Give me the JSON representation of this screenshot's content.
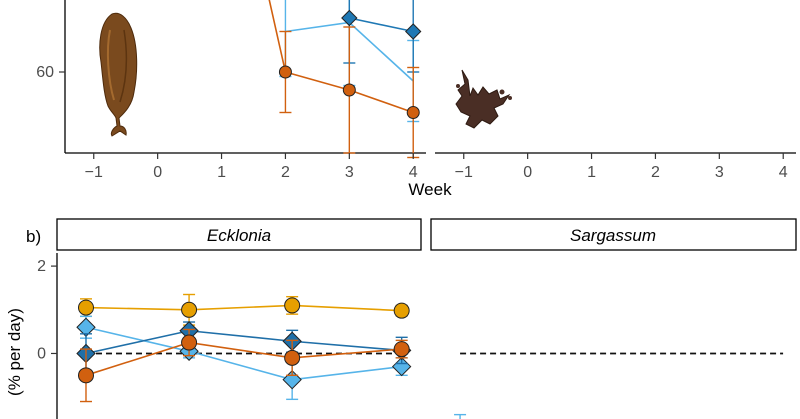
{
  "chart_data": [
    {
      "panel": "a",
      "type": "line",
      "xlabel": "Week",
      "ylabel": "",
      "x_ticks": [
        -1,
        0,
        1,
        2,
        3,
        4
      ],
      "y_ticks": [
        60
      ],
      "xlim": [
        -1.45,
        4.2
      ],
      "ylim": [
        42,
        76
      ],
      "facets": [
        {
          "name": "",
          "series": [
            {
              "color": "#d1600f",
              "marker": "circle",
              "points": [
                {
                  "x": 1.7,
                  "y": 79,
                  "err": 0
                },
                {
                  "x": 2,
                  "y": 60,
                  "err": 9
                },
                {
                  "x": 3,
                  "y": 56,
                  "err": 14
                },
                {
                  "x": 4,
                  "y": 51,
                  "err": 10
                }
              ]
            },
            {
              "color": "#1f78b4",
              "marker": "diamond",
              "points": [
                {
                  "x": 3,
                  "y": 72,
                  "err": 10
                },
                {
                  "x": 4,
                  "y": 69,
                  "err": 9
                }
              ]
            },
            {
              "color": "#56b4e9",
              "marker": "none",
              "points": [
                {
                  "x": 2,
                  "y": 69,
                  "err": 10
                },
                {
                  "x": 3,
                  "y": 71,
                  "err": 14
                },
                {
                  "x": 4,
                  "y": 58,
                  "err": 9
                }
              ]
            }
          ]
        },
        {
          "name": "",
          "series": []
        }
      ]
    },
    {
      "panel": "b",
      "panel_label": "b)",
      "type": "line",
      "xlabel": "",
      "ylabel": "(% per day)",
      "y_ticks": [
        0,
        2
      ],
      "ylim": [
        -1.5,
        2.3
      ],
      "xlim": [
        -1.45,
        4.2
      ],
      "reference_line": 0,
      "facets": [
        {
          "name": "Ecklonia",
          "series": [
            {
              "color": "#e69f00",
              "marker": "circle",
              "points": [
                {
                  "x": -1,
                  "y": 1.05,
                  "err": 0.2
                },
                {
                  "x": 0.6,
                  "y": 1.0,
                  "err": 0.35
                },
                {
                  "x": 2.2,
                  "y": 1.1,
                  "err": 0.2
                },
                {
                  "x": 3.9,
                  "y": 0.98,
                  "err": 0.12
                }
              ]
            },
            {
              "color": "#56b4e9",
              "marker": "diamond",
              "points": [
                {
                  "x": -1,
                  "y": 0.6,
                  "err": 0.25
                },
                {
                  "x": 0.6,
                  "y": 0.05,
                  "err": 0.15
                },
                {
                  "x": 2.2,
                  "y": -0.6,
                  "err": 0.45
                },
                {
                  "x": 3.9,
                  "y": -0.3,
                  "err": 0.2
                }
              ]
            },
            {
              "color": "#1f6fa8",
              "marker": "diamond",
              "points": [
                {
                  "x": -1,
                  "y": 0.0,
                  "err": 0.45
                },
                {
                  "x": 0.6,
                  "y": 0.52,
                  "err": 0.2
                },
                {
                  "x": 2.2,
                  "y": 0.28,
                  "err": 0.25
                },
                {
                  "x": 3.9,
                  "y": 0.07,
                  "err": 0.3
                }
              ]
            },
            {
              "color": "#d1600f",
              "marker": "circle",
              "points": [
                {
                  "x": -1,
                  "y": -0.5,
                  "err": 0.6
                },
                {
                  "x": 0.6,
                  "y": 0.25,
                  "err": 0.3
                },
                {
                  "x": 2.2,
                  "y": -0.1,
                  "err": 0.4
                },
                {
                  "x": 3.9,
                  "y": 0.1,
                  "err": 0.2
                }
              ]
            }
          ]
        },
        {
          "name": "Sargassum",
          "series": [
            {
              "color": "#56b4e9",
              "marker": "none",
              "points": [
                {
                  "x": -1,
                  "y": -1.55,
                  "err": 0.15
                }
              ]
            }
          ]
        }
      ]
    }
  ]
}
